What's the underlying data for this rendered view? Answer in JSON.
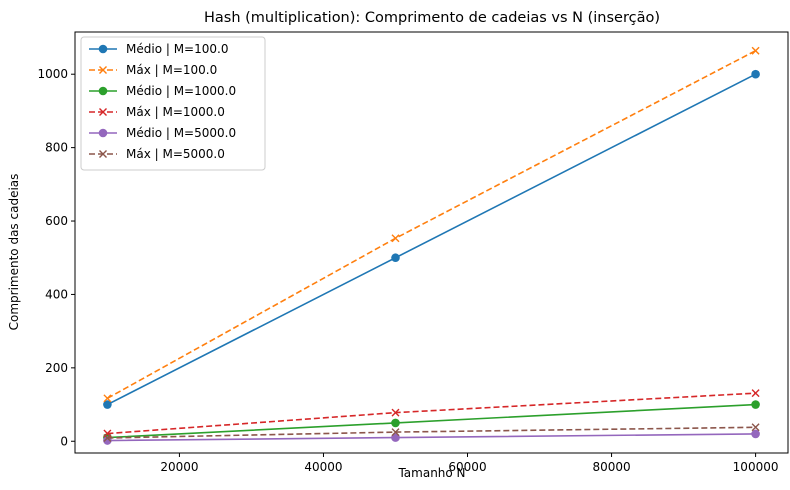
{
  "chart_data": {
    "type": "line",
    "title": "Hash (multiplication): Comprimento de cadeias vs N (inserção)",
    "xlabel": "Tamanho N",
    "ylabel": "Comprimento das cadeias",
    "xlim": [
      5500,
      104500
    ],
    "ylim": [
      -32,
      1115
    ],
    "xticks": [
      20000,
      40000,
      60000,
      80000,
      100000
    ],
    "xtick_labels": [
      "20000",
      "40000",
      "60000",
      "80000",
      "100000"
    ],
    "yticks": [
      0,
      200,
      400,
      600,
      800,
      1000
    ],
    "ytick_labels": [
      "0",
      "200",
      "400",
      "600",
      "800",
      "1000"
    ],
    "grid": false,
    "legend_position": "top-left",
    "x": [
      10000,
      50000,
      100000
    ],
    "series": [
      {
        "name": "Médio | M=100.0",
        "values": [
          100,
          500,
          1000
        ],
        "color": "#1f77b4",
        "linestyle": "solid",
        "marker": "circle"
      },
      {
        "name": "Máx | M=100.0",
        "values": [
          117,
          553,
          1064
        ],
        "color": "#ff7f0e",
        "linestyle": "dashed",
        "marker": "x"
      },
      {
        "name": "Médio | M=1000.0",
        "values": [
          10,
          50,
          100
        ],
        "color": "#2ca02c",
        "linestyle": "solid",
        "marker": "circle"
      },
      {
        "name": "Máx | M=1000.0",
        "values": [
          21,
          78,
          131
        ],
        "color": "#d62728",
        "linestyle": "dashed",
        "marker": "x"
      },
      {
        "name": "Médio | M=5000.0",
        "values": [
          2,
          10,
          20
        ],
        "color": "#9467bd",
        "linestyle": "solid",
        "marker": "circle"
      },
      {
        "name": "Máx | M=5000.0",
        "values": [
          9,
          25,
          38
        ],
        "color": "#8c564b",
        "linestyle": "dashed",
        "marker": "x"
      }
    ]
  }
}
